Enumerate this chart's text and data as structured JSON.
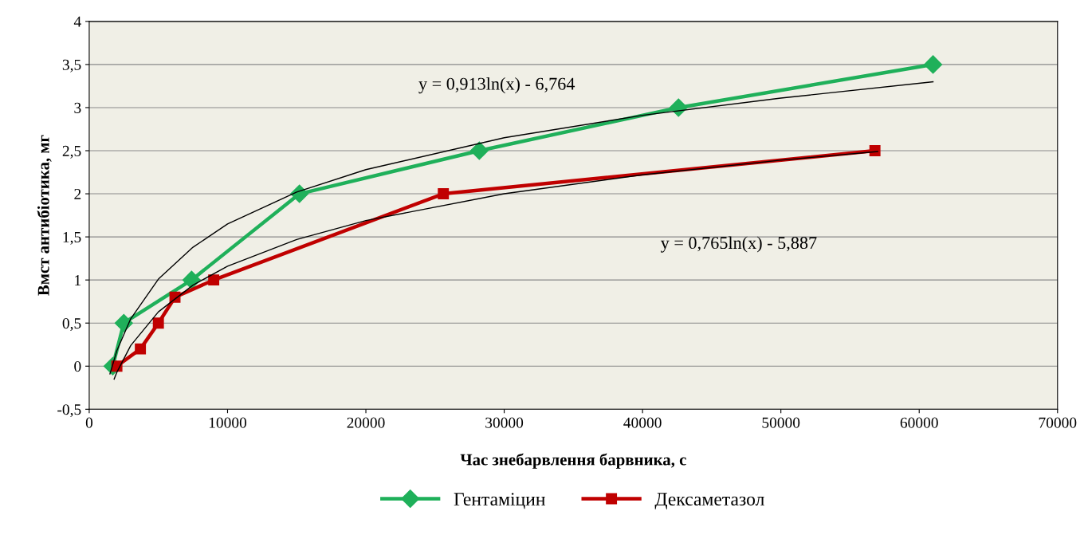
{
  "chart_data": {
    "type": "line",
    "xlabel": "Час знебарвлення барвника, с",
    "ylabel": "Вмст антибіотика, мг",
    "xlim": [
      0,
      70000
    ],
    "xticks": [
      0,
      10000,
      20000,
      30000,
      40000,
      50000,
      60000,
      70000
    ],
    "ylim": [
      -0.5,
      4
    ],
    "yticks": [
      {
        "value": -0.5,
        "label": "-0,5"
      },
      0,
      {
        "value": 0.5,
        "label": "0,5"
      },
      1,
      {
        "value": 1.5,
        "label": "1,5"
      },
      2,
      {
        "value": 2.5,
        "label": "2,5"
      },
      3,
      {
        "value": 3.5,
        "label": "3,5"
      },
      4
    ],
    "grid": "y",
    "legend": "bottom",
    "series": [
      {
        "name": "Гентаміцин",
        "color": "#1fb05a",
        "marker": "diamond",
        "x": [
          1700,
          2500,
          7400,
          15200,
          28200,
          42600,
          61000
        ],
        "values": [
          0,
          0.5,
          1,
          2,
          2.5,
          3,
          3.5
        ]
      },
      {
        "name": "Дексаметазол",
        "color": "#c00000",
        "marker": "square",
        "x": [
          2000,
          3700,
          5000,
          6200,
          9000,
          25600,
          56800
        ],
        "values": [
          0,
          0.2,
          0.5,
          0.8,
          1,
          2,
          2.5
        ]
      },
      {
        "type": "line",
        "color": "#000000",
        "marker": "none",
        "x": [
          1500,
          2000,
          3000,
          5000,
          7500,
          10000,
          15000,
          20000,
          30000,
          40000,
          50000,
          61000
        ],
        "values": [
          -0.09,
          0.18,
          0.55,
          1.01,
          1.38,
          1.65,
          2.02,
          2.28,
          2.65,
          2.91,
          3.11,
          3.3
        ]
      },
      {
        "type": "line",
        "color": "#000000",
        "marker": "none",
        "x": [
          1800,
          2000,
          3000,
          5000,
          7500,
          10000,
          15000,
          20000,
          30000,
          40000,
          50000,
          57000
        ],
        "values": [
          -0.15,
          -0.07,
          0.24,
          0.63,
          0.94,
          1.16,
          1.47,
          1.69,
          2.0,
          2.22,
          2.39,
          2.49
        ]
      }
    ],
    "annotations": [
      "y = 0,913ln(x) - 6,764",
      "y = 0,765ln(x) - 5,887"
    ]
  }
}
